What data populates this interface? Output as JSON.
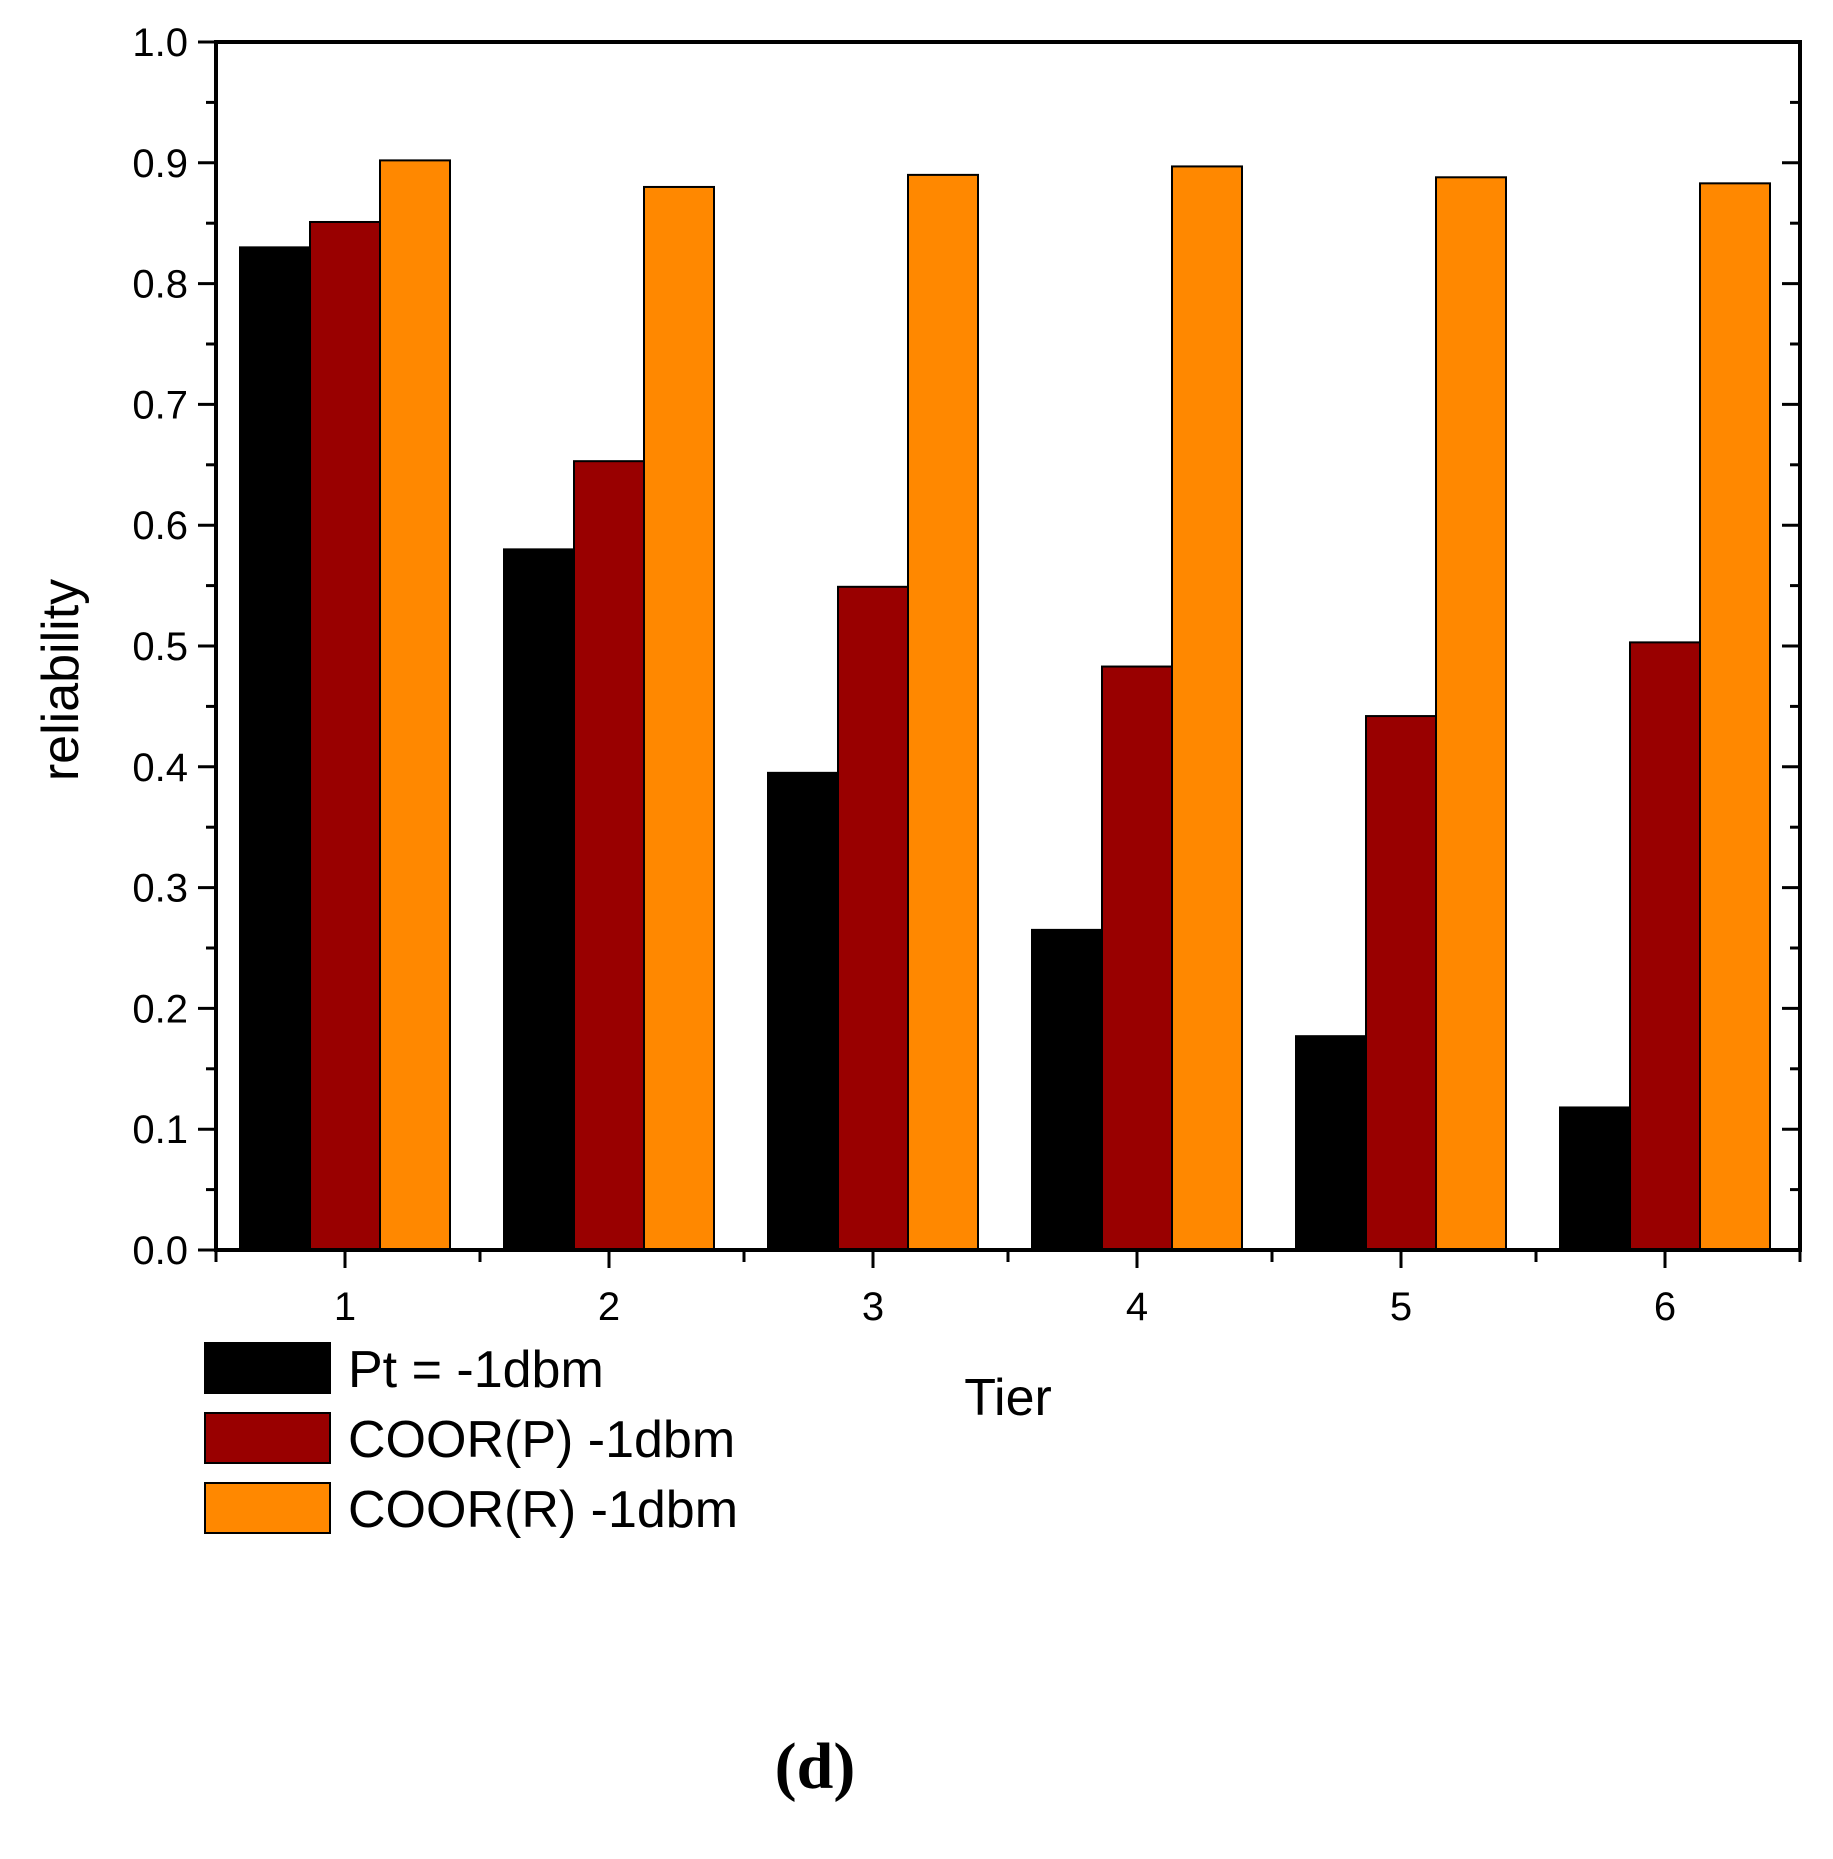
{
  "chart_data": {
    "type": "bar",
    "title": "",
    "xlabel": "Tier",
    "ylabel": "reliability",
    "panel_label": "(d)",
    "categories": [
      "1",
      "2",
      "3",
      "4",
      "5",
      "6"
    ],
    "ylim": [
      0,
      1.0
    ],
    "yticks": [
      "0.0",
      "0.1",
      "0.2",
      "0.3",
      "0.4",
      "0.5",
      "0.6",
      "0.7",
      "0.8",
      "0.9",
      "1.0"
    ],
    "grid": false,
    "legend_position": "below-left",
    "series": [
      {
        "name": "Pt = -1dbm",
        "color": "#000000",
        "values": [
          0.83,
          0.58,
          0.395,
          0.265,
          0.177,
          0.118
        ]
      },
      {
        "name": "COOR(P) -1dbm",
        "color": "#990000",
        "values": [
          0.851,
          0.653,
          0.549,
          0.483,
          0.442,
          0.503
        ]
      },
      {
        "name": "COOR(R) -1dbm",
        "color": "#ff8800",
        "values": [
          0.902,
          0.88,
          0.89,
          0.897,
          0.888,
          0.883
        ]
      }
    ]
  }
}
